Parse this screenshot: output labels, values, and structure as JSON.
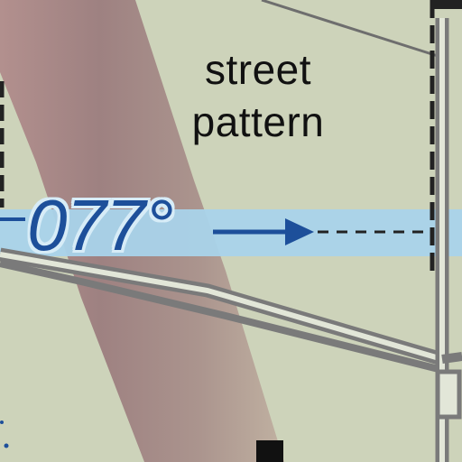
{
  "map": {
    "area_label_line1": "street",
    "area_label_line2": "pattern",
    "course_label": "077°"
  },
  "colors": {
    "background": "#cdd3ba",
    "river": "#9e7f7f",
    "course_band": "#a9d3ea",
    "course_text": "#1d4f9a",
    "road_casing": "#7a7a7a",
    "road_fill": "#e2e6d8",
    "dashed_boundary": "#222222",
    "label_text": "#111111"
  },
  "icons": {
    "arrow": "arrow-right-icon",
    "obstacle": "black-square-icon"
  }
}
